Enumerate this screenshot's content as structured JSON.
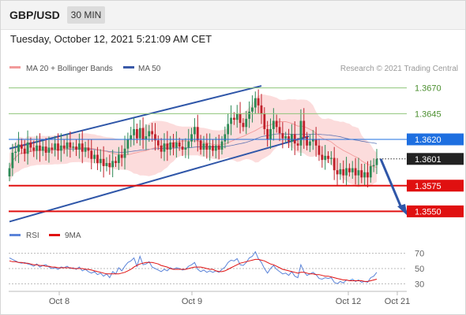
{
  "header": {
    "symbol": "GBP/USD",
    "timeframe": "30 MIN",
    "datetime": "Tuesday, October 12, 2021 5:21:09 AM CET"
  },
  "legend": {
    "ma20_label": "MA 20 + Bollinger Bands",
    "ma50_label": "MA 50",
    "source": "Research © 2021 Trading Central"
  },
  "colors": {
    "bull_candle": "#2e8b57",
    "bear_candle": "#c0202a",
    "bollinger_fill": "#fbd6d6",
    "ma20": "#f29a9a",
    "ma50": "#3a5aa8",
    "channel": "#2f56a8",
    "support": "#e01010",
    "resistance": "#8ec47a",
    "pivot": "#1e6fe0",
    "last_price_bg": "#222222",
    "rsi": "#5b84d9",
    "rsi_ma": "#e01010"
  },
  "chart_data": [
    {
      "type": "candlestick",
      "title": "GBP/USD 30 MIN",
      "x_labels": [
        "Oct 8",
        "Oct 9",
        "Oct 12",
        "Oct 21"
      ],
      "ylim": [
        1.3535,
        1.3682
      ],
      "levels": [
        {
          "value": 1.367,
          "label": "1.3670",
          "kind": "resistance"
        },
        {
          "value": 1.3645,
          "label": "1.3645",
          "kind": "resistance"
        },
        {
          "value": 1.362,
          "label": "1.3620",
          "kind": "pivot"
        },
        {
          "value": 1.3601,
          "label": "1.3601",
          "kind": "last"
        },
        {
          "value": 1.3575,
          "label": "1.3575",
          "kind": "support"
        },
        {
          "value": 1.355,
          "label": "1.3550",
          "kind": "support"
        }
      ],
      "closes": [
        1.3592,
        1.3607,
        1.3608,
        1.3615,
        1.3611,
        1.3606,
        1.3617,
        1.3612,
        1.3609,
        1.3614,
        1.3609,
        1.3613,
        1.3607,
        1.3612,
        1.361,
        1.3616,
        1.3609,
        1.3614,
        1.3611,
        1.3617,
        1.3612,
        1.3613,
        1.361,
        1.3616,
        1.3608,
        1.3612,
        1.3609,
        1.3601,
        1.3605,
        1.3597,
        1.3601,
        1.3594,
        1.3597,
        1.3593,
        1.3599,
        1.3597,
        1.3605,
        1.3602,
        1.3611,
        1.362,
        1.3624,
        1.363,
        1.3621,
        1.3631,
        1.362,
        1.3623,
        1.3628,
        1.3625,
        1.3619,
        1.3614,
        1.3608,
        1.3616,
        1.361,
        1.3617,
        1.3612,
        1.3617,
        1.3613,
        1.361,
        1.3612,
        1.3618,
        1.3625,
        1.3632,
        1.3619,
        1.361,
        1.3616,
        1.361,
        1.3614,
        1.3609,
        1.3614,
        1.361,
        1.3618,
        1.3625,
        1.3635,
        1.3641,
        1.3639,
        1.3645,
        1.3636,
        1.3632,
        1.364,
        1.3647,
        1.3651,
        1.366,
        1.3653,
        1.3645,
        1.363,
        1.362,
        1.363,
        1.3638,
        1.3632,
        1.3626,
        1.3621,
        1.3623,
        1.3618,
        1.3625,
        1.3616,
        1.3614,
        1.3638,
        1.3622,
        1.3614,
        1.3618,
        1.362,
        1.3614,
        1.3605,
        1.36,
        1.3604,
        1.3601,
        1.3602,
        1.359,
        1.3586,
        1.3591,
        1.3585,
        1.3592,
        1.3588,
        1.3592,
        1.3585,
        1.359,
        1.3583,
        1.3588,
        1.3583,
        1.3594,
        1.3595,
        1.3601
      ],
      "series": [
        {
          "name": "MA 20 + Bollinger Bands",
          "ma_period": 20,
          "bands": 2
        },
        {
          "name": "MA 50",
          "ma_period": 50
        }
      ],
      "grid": false
    },
    {
      "type": "line",
      "title": "RSI",
      "yticks": [
        70,
        50,
        30
      ],
      "ylim": [
        20,
        80
      ],
      "series": [
        {
          "name": "RSI",
          "values": [
            64,
            62,
            60,
            58,
            57,
            58,
            56,
            55,
            53,
            56,
            52,
            54,
            55,
            52,
            50,
            51,
            49,
            52,
            51,
            53,
            50,
            51,
            49,
            52,
            47,
            49,
            46,
            44,
            46,
            42,
            44,
            40,
            43,
            38,
            46,
            43,
            51,
            47,
            53,
            58,
            60,
            64,
            53,
            66,
            55,
            56,
            59,
            52,
            50,
            48,
            46,
            49,
            47,
            51,
            49,
            51,
            50,
            48,
            49,
            53,
            55,
            58,
            49,
            46,
            48,
            45,
            47,
            45,
            47,
            45,
            49,
            52,
            58,
            61,
            60,
            63,
            55,
            54,
            58,
            64,
            66,
            72,
            63,
            58,
            50,
            44,
            50,
            54,
            49,
            46,
            43,
            44,
            41,
            46,
            40,
            38,
            55,
            46,
            41,
            43,
            45,
            42,
            37,
            36,
            38,
            37,
            38,
            32,
            30,
            33,
            31,
            35,
            34,
            36,
            33,
            35,
            32,
            33,
            32,
            38,
            40,
            45
          ]
        },
        {
          "name": "9MA",
          "values": [
            60,
            59,
            59,
            58,
            58,
            57,
            57,
            56,
            55,
            55,
            54,
            54,
            53,
            53,
            52,
            52,
            51,
            51,
            51,
            51,
            51,
            50,
            50,
            50,
            50,
            49,
            49,
            48,
            47,
            46,
            45,
            44,
            43,
            43,
            43,
            43,
            43,
            44,
            45,
            47,
            49,
            52,
            54,
            56,
            57,
            58,
            58,
            58,
            57,
            56,
            54,
            53,
            52,
            50,
            49,
            49,
            49,
            49,
            49,
            50,
            51,
            52,
            52,
            52,
            51,
            50,
            49,
            49,
            47,
            46,
            46,
            47,
            49,
            51,
            53,
            55,
            57,
            58,
            59,
            60,
            61,
            62,
            62,
            61,
            60,
            58,
            56,
            55,
            53,
            51,
            49,
            48,
            47,
            46,
            45,
            44,
            45,
            45,
            44,
            43,
            43,
            42,
            42,
            41,
            40,
            40,
            39,
            38,
            37,
            36,
            35,
            35,
            34,
            34,
            34,
            34,
            34,
            33,
            33,
            34,
            35,
            36
          ]
        }
      ]
    }
  ]
}
